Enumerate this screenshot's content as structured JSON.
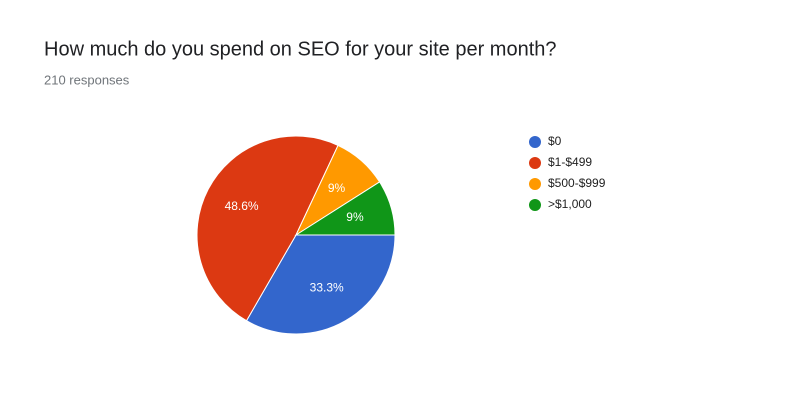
{
  "chart_data": {
    "type": "pie",
    "title": "How much do you spend on SEO for your site per month?",
    "subtitle": "210 responses",
    "categories": [
      "$0",
      "$1-$499",
      "$500-$999",
      ">$1,000"
    ],
    "values": [
      33.3,
      48.6,
      9,
      9
    ],
    "value_labels": [
      "33.3%",
      "48.6%",
      "9%",
      "9%"
    ],
    "colors": [
      "#3366cc",
      "#dc3912",
      "#ff9900",
      "#109618"
    ],
    "legend": "right"
  }
}
